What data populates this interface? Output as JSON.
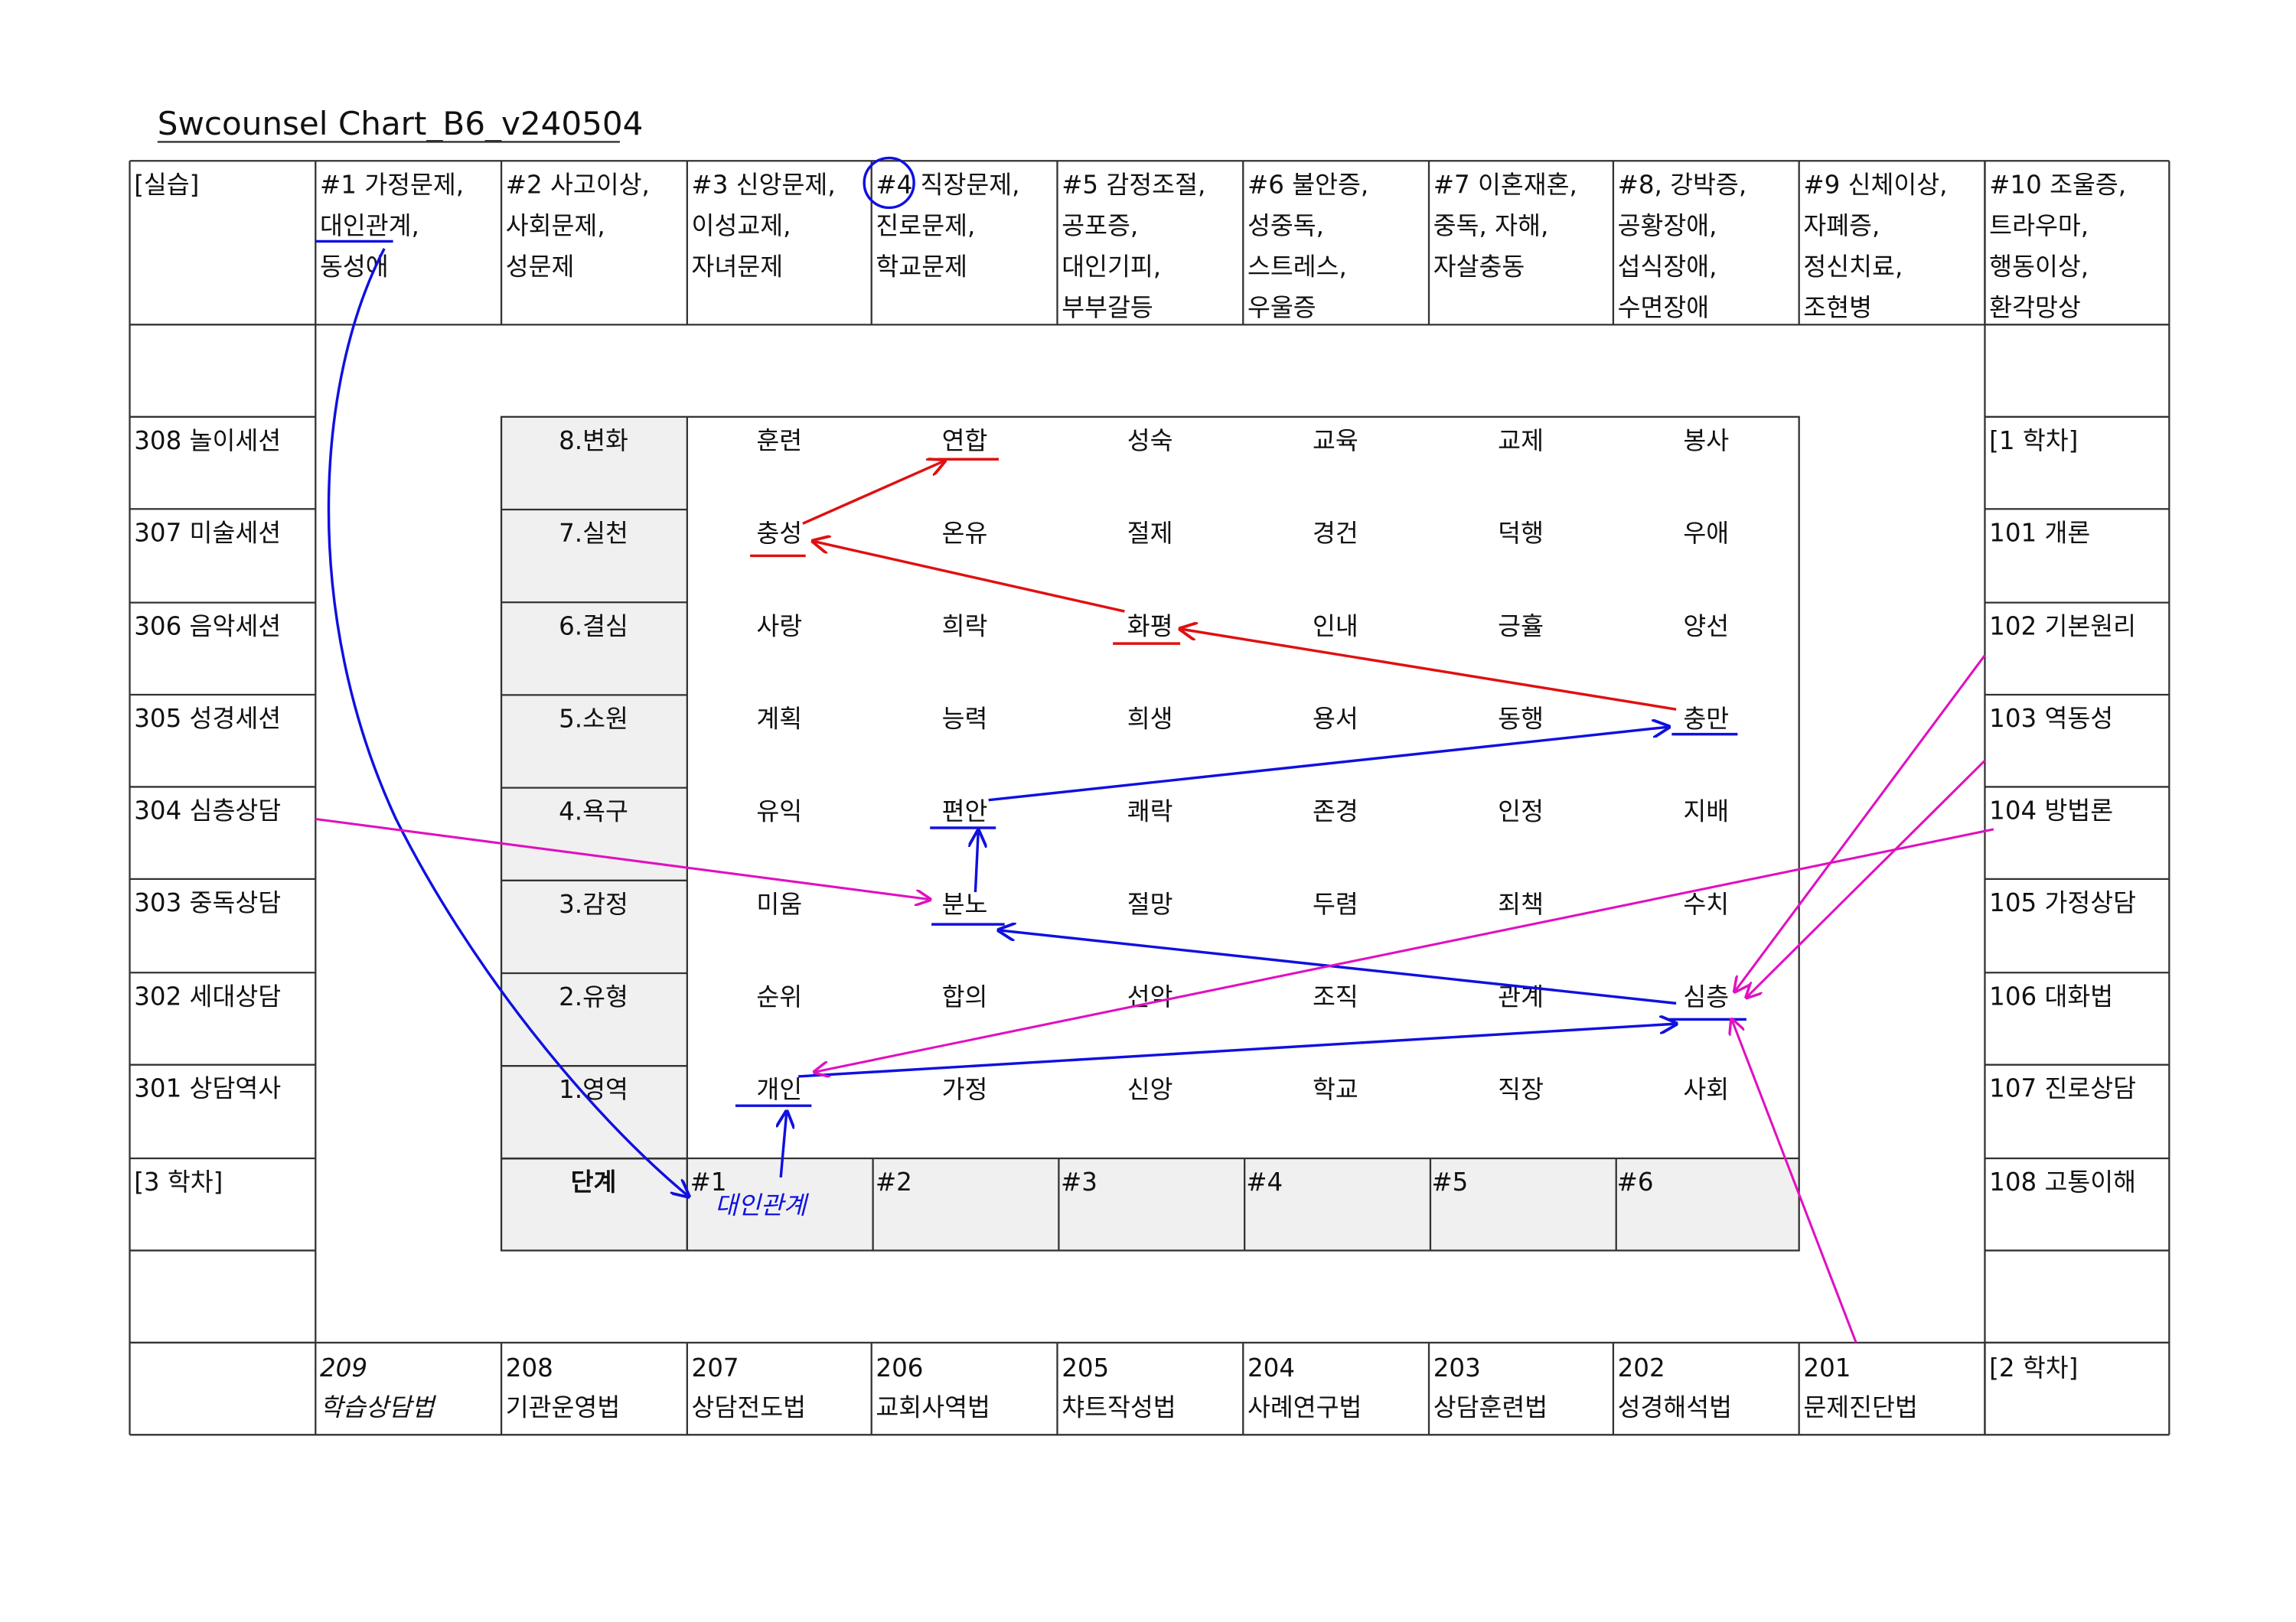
{
  "title": "Swcounsel Chart_B6_v240504",
  "header": [
    [
      "[실습]"
    ],
    [
      "#1 가정문제,",
      "대인관계,",
      "동성애"
    ],
    [
      "#2 사고이상,",
      "사회문제,",
      "성문제"
    ],
    [
      "#3 신앙문제,",
      "이성교제,",
      "자녀문제"
    ],
    [
      "#4 직장문제,",
      "진로문제,",
      "학교문제"
    ],
    [
      "#5 감정조절,",
      "공포증,",
      "대인기피,",
      "부부갈등"
    ],
    [
      "#6 불안증,",
      "성중독,",
      "스트레스,",
      "우울증"
    ],
    [
      "#7 이혼재혼,",
      "중독, 자해,",
      "자살충동"
    ],
    [
      "#8, 강박증,",
      "공황장애,",
      "섭식장애,",
      "수면장애"
    ],
    [
      "#9 신체이상,",
      "자폐증,",
      "정신치료,",
      "조현병"
    ],
    [
      "#10 조울증,",
      "트라우마,",
      "행동이상,",
      "환각망상"
    ]
  ],
  "left_column": [
    "",
    "308 놀이세션",
    "307 미술세션",
    "306 음악세션",
    "305 성경세션",
    "304 심층상담",
    "303 중독상담",
    "302 세대상담",
    "301 상담역사",
    "[3 학차]",
    ""
  ],
  "right_column": [
    "",
    "[1 학차]",
    "101 개론",
    "102 기본원리",
    "103 역동성",
    "104 방법론",
    "105 가정상담",
    "106 대화법",
    "107 진로상담",
    "108 고통이해",
    ""
  ],
  "bottom_row": [
    [
      "",
      ""
    ],
    [
      "209",
      "학습상담법"
    ],
    [
      "208",
      "기관운영법"
    ],
    [
      "207",
      "상담전도법"
    ],
    [
      "206",
      "교회사역법"
    ],
    [
      "205",
      "챠트작성법"
    ],
    [
      "204",
      "사례연구법"
    ],
    [
      "203",
      "상담훈련법"
    ],
    [
      "202",
      "성경해석법"
    ],
    [
      "201",
      "문제진단법"
    ],
    [
      "[2 학차]",
      ""
    ]
  ],
  "inner_grid": {
    "rows": [
      {
        "label": "8.변화",
        "cells": [
          "훈련",
          "연합",
          "성숙",
          "교육",
          "교제",
          "봉사"
        ]
      },
      {
        "label": "7.실천",
        "cells": [
          "충성",
          "온유",
          "절제",
          "경건",
          "덕행",
          "우애"
        ]
      },
      {
        "label": "6.결심",
        "cells": [
          "사랑",
          "희락",
          "화평",
          "인내",
          "긍휼",
          "양선"
        ]
      },
      {
        "label": "5.소원",
        "cells": [
          "계획",
          "능력",
          "희생",
          "용서",
          "동행",
          "충만"
        ]
      },
      {
        "label": "4.욕구",
        "cells": [
          "유익",
          "편안",
          "쾌락",
          "존경",
          "인정",
          "지배"
        ]
      },
      {
        "label": "3.감정",
        "cells": [
          "미움",
          "분노",
          "절망",
          "두렴",
          "죄책",
          "수치"
        ]
      },
      {
        "label": "2.유형",
        "cells": [
          "순위",
          "합의",
          "선악",
          "조직",
          "관계",
          "심층"
        ]
      },
      {
        "label": "1.영역",
        "cells": [
          "개인",
          "가정",
          "신앙",
          "학교",
          "직장",
          "사회"
        ]
      }
    ],
    "stage_label": "단계",
    "stages": [
      "#1",
      "#2",
      "#3",
      "#4",
      "#5",
      "#6"
    ]
  },
  "annotation": {
    "handwritten_note": "대인관계"
  },
  "colors": {
    "blue_ink": "#1010e0",
    "red_ink": "#e01010",
    "magenta_ink": "#e010c0",
    "label_fill": "#f0f0f0"
  }
}
